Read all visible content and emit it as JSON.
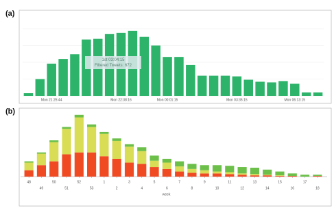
{
  "chart_data": [
    {
      "type": "bar",
      "panel_label": "(a)",
      "categories": [
        null,
        null,
        "Mon 21:25:44",
        null,
        null,
        null,
        null,
        null,
        "Mon 22:38:16",
        null,
        null,
        null,
        "Mon 00:01:15",
        null,
        null,
        null,
        null,
        null,
        "Mon 03:35:15",
        null,
        null,
        null,
        null,
        "Mon 06:13:15",
        null,
        null
      ],
      "values": [
        4,
        25,
        48,
        55,
        62,
        84,
        85,
        92,
        94,
        97,
        88,
        75,
        58,
        58,
        46,
        30,
        30,
        30,
        29,
        24,
        21,
        20,
        22,
        18,
        5,
        5
      ],
      "color": "#2db36a",
      "ylim": [
        0,
        100
      ],
      "yticks": [
        0,
        25,
        50,
        75,
        100
      ],
      "grid": true,
      "tooltip": {
        "title": "1st 03:04:15",
        "text": "Filtered Tweets: 672"
      }
    },
    {
      "type": "stacked_bar",
      "panel_label": "(b)",
      "categories": [
        "48",
        "49",
        "50",
        "51",
        "52",
        "53",
        "1",
        "2",
        "3",
        "4",
        "5",
        "6",
        "7",
        "8",
        "9",
        "10",
        "11",
        "12",
        "13",
        "14",
        "15",
        "16",
        "17",
        "18"
      ],
      "x_label": "week",
      "ylim": [
        0,
        100
      ],
      "grid": false,
      "series": [
        {
          "color": "#f04a23",
          "values": [
            10,
            18,
            24,
            35,
            38,
            38,
            32,
            28,
            22,
            20,
            15,
            12,
            8,
            6,
            5,
            5,
            4,
            3,
            2,
            2,
            1,
            1,
            0,
            1
          ]
        },
        {
          "color": "#d9dd55",
          "values": [
            12,
            18,
            30,
            40,
            55,
            40,
            35,
            28,
            25,
            20,
            10,
            10,
            8,
            6,
            5,
            3,
            3,
            2,
            2,
            1,
            1,
            0,
            0,
            0
          ]
        },
        {
          "color": "#6cc04a",
          "values": [
            2,
            2,
            3,
            3,
            4,
            4,
            3,
            4,
            4,
            6,
            8,
            6,
            8,
            8,
            8,
            10,
            10,
            10,
            10,
            8,
            6,
            4,
            3,
            2
          ]
        }
      ]
    }
  ]
}
